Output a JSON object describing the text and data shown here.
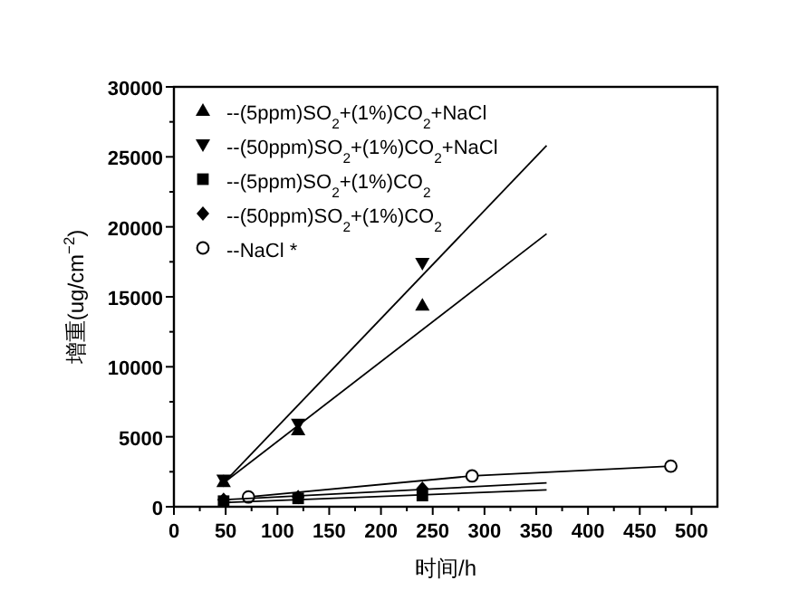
{
  "chart_data": {
    "type": "scatter",
    "xlabel": "时间/h",
    "ylabel": "增重(ug/cm$^{−2}$)",
    "xlim": [
      0,
      525
    ],
    "ylim": [
      0,
      30000
    ],
    "xticks": [
      0,
      {
        "value": 25,
        "label": null
      },
      50,
      {
        "value": 75,
        "label": null
      },
      100,
      {
        "value": 125,
        "label": null
      },
      150,
      {
        "value": 175,
        "label": null
      },
      200,
      {
        "value": 225,
        "label": null
      },
      250,
      {
        "value": 275,
        "label": null
      },
      300,
      {
        "value": 325,
        "label": null
      },
      350,
      {
        "value": 375,
        "label": null
      },
      400,
      {
        "value": 425,
        "label": null
      },
      450,
      {
        "value": 475,
        "label": null
      },
      500
    ],
    "yticks": [
      0,
      {
        "value": 2500,
        "label": null
      },
      5000,
      {
        "value": 7500,
        "label": null
      },
      10000,
      {
        "value": 12500,
        "label": null
      },
      15000,
      {
        "value": 17500,
        "label": null
      },
      20000,
      {
        "value": 22500,
        "label": null
      },
      25000,
      {
        "value": 27500,
        "label": null
      },
      30000
    ],
    "legend": "top left",
    "grid": false,
    "series": [
      {
        "name": "--(5ppm)SO$_{2}$+(1%)CO$_{2}$+NaCl",
        "marker": "triangle",
        "color": "#000000",
        "x": [
          48,
          120,
          240
        ],
        "values": [
          1800,
          5500,
          14400
        ]
      },
      {
        "name": "--(50ppm)SO$_{2}$+(1%)CO$_{2}$+NaCl",
        "marker": "triangle_down",
        "color": "#000000",
        "x": [
          48,
          120,
          240
        ],
        "values": [
          1900,
          5900,
          17400
        ]
      },
      {
        "name": "--(5ppm)SO$_{2}$+(1%)CO$_{2}$",
        "marker": "square",
        "color": "#000000",
        "x": [
          48,
          120,
          240
        ],
        "values": [
          400,
          600,
          800
        ]
      },
      {
        "name": "--(50ppm)SO$_{2}$+(1%)CO$_{2}$",
        "marker": "diamond",
        "color": "#000000",
        "x": [
          48,
          120,
          240
        ],
        "values": [
          500,
          700,
          1300
        ]
      },
      {
        "name": "--NaCl  *",
        "type": "line",
        "marker": "circle",
        "color": "#000000",
        "x": [
          72,
          288,
          480
        ],
        "values": [
          700,
          2200,
          2900
        ]
      },
      {
        "type": "line",
        "marker": "none",
        "color": "#000000",
        "x": [
          48,
          360
        ],
        "values": [
          1700,
          19500
        ]
      },
      {
        "type": "line",
        "marker": "none",
        "color": "#000000",
        "x": [
          48,
          360
        ],
        "values": [
          1700,
          25800
        ]
      },
      {
        "type": "line",
        "marker": "none",
        "color": "#000000",
        "x": [
          48,
          360
        ],
        "values": [
          300,
          1200
        ]
      },
      {
        "type": "line",
        "marker": "none",
        "color": "#000000",
        "x": [
          48,
          360
        ],
        "values": [
          500,
          1700
        ]
      }
    ]
  }
}
